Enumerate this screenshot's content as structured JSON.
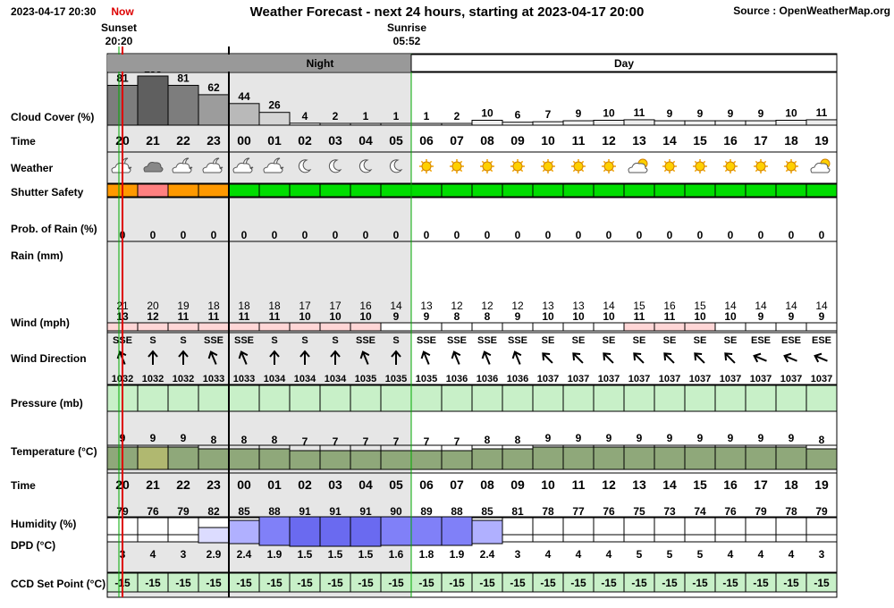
{
  "header": {
    "datetime": "2023-04-17 20:30",
    "now_label": "Now",
    "title": "Weather Forecast - next 24 hours, starting at 2023-04-17 20:00",
    "source": "Source : OpenWeatherMap.org",
    "sunset_label": "Sunset",
    "sunset_time": "20:20",
    "sunrise_label": "Sunrise",
    "sunrise_time": "05:52",
    "night_label": "Night",
    "day_label": "Day"
  },
  "row_labels": {
    "cloud": "Cloud Cover (%)",
    "time": "Time",
    "weather": "Weather",
    "shutter": "Shutter Safety",
    "rain_prob": "Prob. of Rain (%)",
    "rain": "Rain (mm)",
    "wind": "Wind (mph)",
    "wind_dir": "Wind Direction",
    "pressure": "Pressure (mb)",
    "temperature": "Temperature (°C)",
    "time2": "Time",
    "humidity": "Humidity (%)",
    "dpd": "DPD (°C)",
    "ccd": "CCD Set Point (°C)"
  },
  "colors": {
    "night_bg": "#e6e6e6",
    "band_night": "#999999",
    "band_day": "#ffffff",
    "now_line": "#dd0000",
    "green": "#00dd00",
    "orange": "#ff9900",
    "pink": "#ff8080",
    "pressure_fill": "#c8f0c8",
    "ccd_fill": "#c8f0c8"
  },
  "chart_data": {
    "type": "table",
    "hours": [
      "20",
      "21",
      "22",
      "23",
      "00",
      "01",
      "02",
      "03",
      "04",
      "05",
      "06",
      "07",
      "08",
      "09",
      "10",
      "11",
      "12",
      "13",
      "14",
      "15",
      "16",
      "17",
      "18",
      "19"
    ],
    "cloud_cover": [
      81,
      100,
      81,
      62,
      44,
      26,
      4,
      2,
      1,
      1,
      1,
      2,
      10,
      6,
      7,
      9,
      10,
      11,
      9,
      9,
      9,
      9,
      10,
      11
    ],
    "weather_icons": [
      "partly-cloudy-night",
      "cloudy",
      "partly-cloudy-night",
      "partly-cloudy-night",
      "partly-cloudy-night",
      "partly-cloudy-night",
      "clear-night",
      "clear-night",
      "clear-night",
      "clear-night",
      "sun",
      "sun",
      "sun",
      "sun",
      "sun",
      "sun",
      "sun",
      "partly-cloudy-day",
      "sun",
      "sun",
      "sun",
      "sun",
      "sun",
      "partly-cloudy-day"
    ],
    "shutter_safety": [
      "orange",
      "pink",
      "orange",
      "orange",
      "green",
      "green",
      "green",
      "green",
      "green",
      "green",
      "green",
      "green",
      "green",
      "green",
      "green",
      "green",
      "green",
      "green",
      "green",
      "green",
      "green",
      "green",
      "green",
      "green"
    ],
    "rain_probability": [
      0,
      0,
      0,
      0,
      0,
      0,
      0,
      0,
      0,
      0,
      0,
      0,
      0,
      0,
      0,
      0,
      0,
      0,
      0,
      0,
      0,
      0,
      0,
      0
    ],
    "wind_gust": [
      21,
      20,
      19,
      18,
      18,
      18,
      17,
      17,
      16,
      14,
      13,
      12,
      12,
      12,
      13,
      13,
      14,
      15,
      16,
      15,
      14,
      14,
      14,
      14
    ],
    "wind_speed": [
      13,
      12,
      11,
      11,
      11,
      11,
      10,
      10,
      10,
      9,
      9,
      8,
      8,
      9,
      10,
      10,
      10,
      11,
      11,
      10,
      10,
      9,
      9,
      9
    ],
    "wind_direction": [
      "SSE",
      "S",
      "S",
      "SSE",
      "SSE",
      "S",
      "S",
      "S",
      "SSE",
      "S",
      "SSE",
      "SSE",
      "SSE",
      "SSE",
      "SE",
      "SE",
      "SE",
      "SE",
      "SE",
      "SE",
      "SE",
      "ESE",
      "ESE",
      "ESE"
    ],
    "pressure": [
      1032,
      1032,
      1032,
      1033,
      1033,
      1034,
      1034,
      1034,
      1035,
      1035,
      1035,
      1036,
      1036,
      1036,
      1037,
      1037,
      1037,
      1037,
      1037,
      1037,
      1037,
      1037,
      1037,
      1037
    ],
    "temperature": [
      9,
      9,
      9,
      8,
      8,
      8,
      7,
      7,
      7,
      7,
      7,
      7,
      8,
      8,
      9,
      9,
      9,
      9,
      9,
      9,
      9,
      9,
      9,
      8
    ],
    "humidity": [
      79,
      76,
      79,
      82,
      85,
      88,
      91,
      91,
      91,
      90,
      89,
      88,
      85,
      81,
      78,
      77,
      76,
      75,
      73,
      74,
      76,
      79,
      78,
      79
    ],
    "dpd": [
      "3",
      "4",
      "3",
      "2.9",
      "2.4",
      "1.9",
      "1.5",
      "1.5",
      "1.5",
      "1.6",
      "1.8",
      "1.9",
      "2.4",
      "3",
      "4",
      "4",
      "4",
      "5",
      "5",
      "5",
      "4",
      "4",
      "4",
      "3"
    ],
    "ccd_set_point": [
      -15,
      -15,
      -15,
      -15,
      -15,
      -15,
      -15,
      -15,
      -15,
      -15,
      -15,
      -15,
      -15,
      -15,
      -15,
      -15,
      -15,
      -15,
      -15,
      -15,
      -15,
      -15,
      -15,
      -15
    ]
  }
}
